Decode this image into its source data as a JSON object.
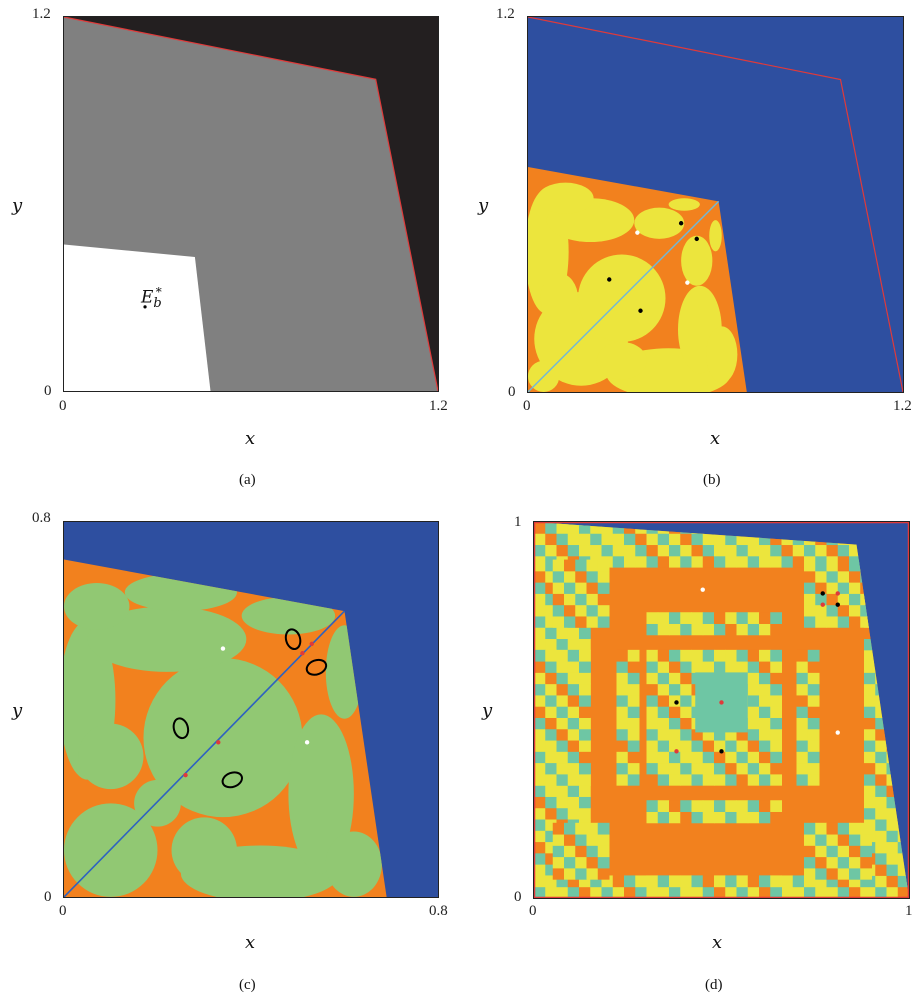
{
  "chart_data": [
    {
      "type": "heatmap",
      "panel": "(a)",
      "xlabel": "x",
      "ylabel": "y",
      "xlim": [
        0,
        1.2
      ],
      "ylim": [
        0,
        1.2
      ],
      "x_ticks": [
        "0",
        "1.2"
      ],
      "y_ticks": [
        "0",
        "1.2"
      ],
      "regions": [
        {
          "name": "escape region",
          "color": "#231f20"
        },
        {
          "name": "feasible region",
          "color": "#808080"
        },
        {
          "name": "basin of E_b*",
          "color": "#ffffff"
        }
      ],
      "boundary_polygon": [
        [
          0,
          1.2
        ],
        [
          1.0,
          1.0
        ],
        [
          1.2,
          0
        ]
      ],
      "boundary_color": "#e03a3a",
      "white_region_polygon": [
        [
          0,
          0
        ],
        [
          0,
          0.47
        ],
        [
          0.42,
          0.43
        ],
        [
          0.47,
          0
        ]
      ],
      "points": [
        {
          "x": 0.26,
          "y": 0.27,
          "color": "#000000"
        }
      ],
      "annotation": "E_b^*"
    },
    {
      "type": "heatmap",
      "panel": "(b)",
      "xlabel": "x",
      "ylabel": "y",
      "xlim": [
        0,
        1.2
      ],
      "ylim": [
        0,
        1.2
      ],
      "x_ticks": [
        "0",
        "1.2"
      ],
      "y_ticks": [
        "0",
        "1.2"
      ],
      "regions": [
        {
          "name": "background",
          "color": "#2e4fa0"
        },
        {
          "name": "basin A",
          "color": "#ece53d"
        },
        {
          "name": "basin B",
          "color": "#f2811e"
        }
      ],
      "boundary_polygon": [
        [
          0,
          1.2
        ],
        [
          1.0,
          1.0
        ],
        [
          1.2,
          0
        ]
      ],
      "boundary_color": "#e03a3a",
      "inner_polygon": [
        [
          0,
          0.72
        ],
        [
          0.61,
          0.61
        ],
        [
          0.7,
          0
        ]
      ],
      "diagonal": {
        "from": [
          0,
          0
        ],
        "to": [
          0.61,
          0.61
        ],
        "color": "#6fb7d8"
      },
      "points": [
        {
          "x": 0.35,
          "y": 0.51,
          "color": "#ffffff"
        },
        {
          "x": 0.49,
          "y": 0.54,
          "color": "#000000"
        },
        {
          "x": 0.54,
          "y": 0.49,
          "color": "#000000"
        },
        {
          "x": 0.26,
          "y": 0.36,
          "color": "#000000"
        },
        {
          "x": 0.36,
          "y": 0.26,
          "color": "#000000"
        },
        {
          "x": 0.51,
          "y": 0.35,
          "color": "#ffffff"
        }
      ]
    },
    {
      "type": "heatmap",
      "panel": "(c)",
      "xlabel": "x",
      "ylabel": "y",
      "xlim": [
        0,
        0.8
      ],
      "ylim": [
        0,
        0.8
      ],
      "x_ticks": [
        "0",
        "0.8"
      ],
      "y_ticks": [
        "0",
        "0.8"
      ],
      "regions": [
        {
          "name": "background",
          "color": "#2e4fa0"
        },
        {
          "name": "basin A",
          "color": "#91c873"
        },
        {
          "name": "basin B",
          "color": "#f2811e"
        }
      ],
      "inner_polygon": [
        [
          0,
          0.72
        ],
        [
          0.6,
          0.61
        ],
        [
          0.69,
          0
        ]
      ],
      "diagonal": {
        "from": [
          0,
          0
        ],
        "to": [
          0.6,
          0.61
        ],
        "color": "#2e62c0"
      },
      "points": [
        {
          "x": 0.34,
          "y": 0.53,
          "color": "#ffffff"
        },
        {
          "x": 0.52,
          "y": 0.33,
          "color": "#ffffff"
        },
        {
          "x": 0.26,
          "y": 0.26,
          "color": "#e03a3a"
        },
        {
          "x": 0.33,
          "y": 0.33,
          "color": "#e03a3a"
        },
        {
          "x": 0.51,
          "y": 0.52,
          "color": "#e03a3a"
        },
        {
          "x": 0.53,
          "y": 0.54,
          "color": "#e03a3a"
        }
      ],
      "closed_curves": [
        {
          "cx": 0.25,
          "cy": 0.36,
          "color": "#000000"
        },
        {
          "cx": 0.36,
          "cy": 0.25,
          "color": "#000000"
        },
        {
          "cx": 0.49,
          "cy": 0.55,
          "color": "#000000"
        },
        {
          "cx": 0.54,
          "cy": 0.49,
          "color": "#000000"
        }
      ]
    },
    {
      "type": "heatmap",
      "panel": "(d)",
      "xlabel": "x",
      "ylabel": "y",
      "xlim": [
        0,
        1
      ],
      "ylim": [
        0,
        1
      ],
      "x_ticks": [
        "0",
        "1"
      ],
      "y_ticks": [
        "0",
        "1"
      ],
      "regions": [
        {
          "name": "background",
          "color": "#2e4fa0"
        },
        {
          "name": "basin A",
          "color": "#f2811e"
        },
        {
          "name": "basin B",
          "color": "#ece53d"
        },
        {
          "name": "basin C",
          "color": "#6ec6a4"
        }
      ],
      "border_color": "#e03a3a",
      "inner_polygon": [
        [
          0,
          1
        ],
        [
          0.86,
          0.94
        ],
        [
          1,
          0
        ]
      ],
      "points": [
        {
          "x": 0.45,
          "y": 0.82,
          "color": "#ffffff"
        },
        {
          "x": 0.81,
          "y": 0.44,
          "color": "#ffffff"
        },
        {
          "x": 0.77,
          "y": 0.81,
          "color": "#000000"
        },
        {
          "x": 0.81,
          "y": 0.78,
          "color": "#000000"
        },
        {
          "x": 0.38,
          "y": 0.52,
          "color": "#000000"
        },
        {
          "x": 0.5,
          "y": 0.39,
          "color": "#000000"
        },
        {
          "x": 0.81,
          "y": 0.81,
          "color": "#e03a3a"
        },
        {
          "x": 0.77,
          "y": 0.78,
          "color": "#e03a3a"
        },
        {
          "x": 0.5,
          "y": 0.52,
          "color": "#e03a3a"
        },
        {
          "x": 0.38,
          "y": 0.39,
          "color": "#e03a3a"
        }
      ]
    }
  ]
}
